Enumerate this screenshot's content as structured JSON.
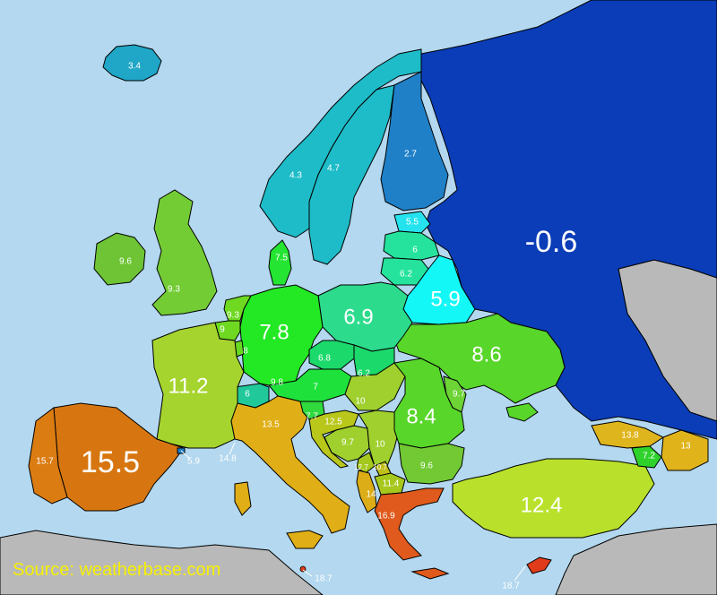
{
  "source": "Source: weatherbase.com",
  "colors": {
    "sea": "#b3d8ef",
    "non_europe": "#b9b9b9"
  },
  "countries": [
    {
      "name": "Russia",
      "value": "-0.6",
      "color": "#0a3db7"
    },
    {
      "name": "Finland",
      "value": "2.7",
      "color": "#1f80c8"
    },
    {
      "name": "Iceland",
      "value": "3.4",
      "color": "#20a6c6"
    },
    {
      "name": "Norway",
      "value": "4.3",
      "color": "#1dbcc8"
    },
    {
      "name": "Sweden",
      "value": "4.7",
      "color": "#1dbcc8"
    },
    {
      "name": "Estonia",
      "value": "5.5",
      "color": "#25e3ee"
    },
    {
      "name": "Belarus",
      "value": "5.9",
      "color": "#14f7f7"
    },
    {
      "name": "Latvia",
      "value": "6",
      "color": "#25e39d"
    },
    {
      "name": "Lithuania",
      "value": "6.2",
      "color": "#25e39d"
    },
    {
      "name": "Poland",
      "value": "6.9",
      "color": "#2ddb8c"
    },
    {
      "name": "Czechia",
      "value": "6.8",
      "color": "#1cd96b"
    },
    {
      "name": "Slovakia",
      "value": "6.2",
      "color": "#1cd96b"
    },
    {
      "name": "Switzerland",
      "value": "6",
      "color": "#20c89a"
    },
    {
      "name": "Austria",
      "value": "7",
      "color": "#1ee23b"
    },
    {
      "name": "Denmark",
      "value": "7.5",
      "color": "#24e531"
    },
    {
      "name": "Germany",
      "value": "7.8",
      "color": "#22e923"
    },
    {
      "name": "Slovenia",
      "value": "7.7",
      "color": "#30d93e"
    },
    {
      "name": "Armenia",
      "value": "7.2",
      "color": "#2ed22b"
    },
    {
      "name": "Luxembourg",
      "value": "8",
      "color": "#66d81f"
    },
    {
      "name": "Romania",
      "value": "8.4",
      "color": "#58d62a"
    },
    {
      "name": "Ukraine",
      "value": "8.6",
      "color": "#58d62a"
    },
    {
      "name": "Belgium",
      "value": "9",
      "color": "#6fd922"
    },
    {
      "name": "Netherlands",
      "value": "9.3",
      "color": "#6fd922"
    },
    {
      "name": "United Kingdom",
      "value": "9.3",
      "color": "#74cc35"
    },
    {
      "name": "Ireland",
      "value": "9.6",
      "color": "#6ec434"
    },
    {
      "name": "Bulgaria",
      "value": "9.6",
      "color": "#72c934"
    },
    {
      "name": "Moldova",
      "value": "9.7",
      "color": "#6dd436"
    },
    {
      "name": "Liechtenstein",
      "value": "9.8",
      "color": "#5ed822"
    },
    {
      "name": "Bosnia",
      "value": "9.7",
      "color": "#9fd02e"
    },
    {
      "name": "Hungary",
      "value": "10",
      "color": "#9fd02e"
    },
    {
      "name": "Serbia",
      "value": "10",
      "color": "#9fd02e"
    },
    {
      "name": "Montenegro",
      "value": "10.7",
      "color": "#a5c81e"
    },
    {
      "name": "France",
      "value": "11.2",
      "color": "#a6d42e"
    },
    {
      "name": "North Macedonia",
      "value": "11.4",
      "color": "#a6c81d"
    },
    {
      "name": "Turkey",
      "value": "12.4",
      "color": "#b9e12b"
    },
    {
      "name": "Croatia",
      "value": "12.5",
      "color": "#b8c71a"
    },
    {
      "name": "Kosovo",
      "value": "12.7",
      "color": "#bfbe1a"
    },
    {
      "name": "Azerbaijan",
      "value": "13",
      "color": "#e0b31b"
    },
    {
      "name": "Italy",
      "value": "13.5",
      "color": "#e0ae16"
    },
    {
      "name": "Georgia",
      "value": "13.8",
      "color": "#dfb51d"
    },
    {
      "name": "Albania",
      "value": "14",
      "color": "#ddad18"
    },
    {
      "name": "Monaco",
      "value": "14.8",
      "color": "#e0ae16"
    },
    {
      "name": "Spain",
      "value": "15.5",
      "color": "#d77610"
    },
    {
      "name": "Portugal",
      "value": "15.7",
      "color": "#db7c13"
    },
    {
      "name": "Andorra",
      "value": "5.9",
      "color": "#1f80c8"
    },
    {
      "name": "Greece",
      "value": "16.9",
      "color": "#df5a1c"
    },
    {
      "name": "Malta",
      "value": "18.7",
      "color": "#e03b1b"
    },
    {
      "name": "Cyprus",
      "value": "18.7",
      "color": "#e03b1b"
    }
  ]
}
